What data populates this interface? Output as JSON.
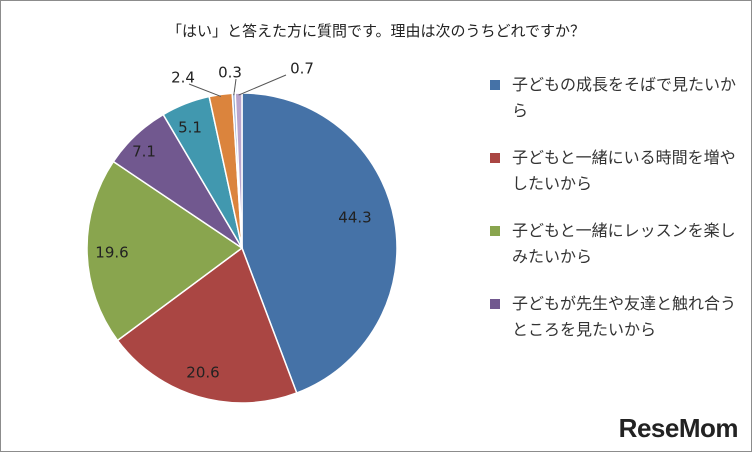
{
  "chart_data": {
    "type": "pie",
    "title": "「はい」と答えた方に質問です。理由は次のうちどれですか？",
    "slices": [
      {
        "label": "子どもの成長をそばで見たいから",
        "value": 44.3,
        "value_label": "44.3",
        "color": "#4572a7",
        "in_legend": true
      },
      {
        "label": "子どもと一緒にいる時間を増やしたいから",
        "value": 20.6,
        "value_label": "20.6",
        "color": "#aa4643",
        "in_legend": true
      },
      {
        "label": "子どもと一緒にレッスンを楽しみたいから",
        "value": 19.6,
        "value_label": "19.6",
        "color": "#89a54e",
        "in_legend": true
      },
      {
        "label": "子どもが先生や友達と触れ合うところを見たいから",
        "value": 7.1,
        "value_label": "7.1",
        "color": "#71588f",
        "in_legend": true
      },
      {
        "label": "",
        "value": 5.1,
        "value_label": "5.1",
        "color": "#4198af",
        "in_legend": false
      },
      {
        "label": "",
        "value": 2.4,
        "value_label": "2.4",
        "color": "#db843d",
        "in_legend": false
      },
      {
        "label": "",
        "value": 0.3,
        "value_label": "0.3",
        "color": "#93a9cf",
        "in_legend": false
      },
      {
        "label": "",
        "value": 0.7,
        "value_label": "0.7",
        "color": "#b9a5cd",
        "in_legend": false
      }
    ],
    "legend_position": "right"
  },
  "watermark": "ReseMom"
}
